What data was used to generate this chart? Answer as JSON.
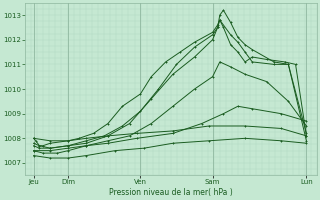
{
  "bg_color": "#c5e8d2",
  "grid_color_minor": "#b0d8c0",
  "grid_color_major": "#90b8a0",
  "line_color": "#1a5c20",
  "ylabel_text": "Pression niveau de la mer( hPa )",
  "ylim": [
    1006.5,
    1013.5
  ],
  "yticks": [
    1007,
    1008,
    1009,
    1010,
    1011,
    1012,
    1013
  ],
  "x_days": [
    "Jeu",
    "Dim",
    "Ven",
    "Sam",
    "Lun"
  ],
  "x_day_positions": [
    0.07,
    0.55,
    1.55,
    2.55,
    3.85
  ],
  "x_vline_positions": [
    0.07,
    0.55,
    1.55,
    2.55,
    3.85
  ],
  "xlim": [
    -0.05,
    4.0
  ],
  "detailed_series": [
    {
      "x": [
        0.07,
        0.1,
        0.15,
        0.2,
        0.3,
        0.55,
        0.7,
        0.9,
        1.1,
        1.3,
        1.55,
        1.7,
        1.9,
        2.1,
        2.3,
        2.55,
        2.62,
        2.65,
        2.7,
        2.8,
        2.9,
        3.0,
        3.1,
        3.3,
        3.55,
        3.7,
        3.85
      ],
      "y": [
        1008.0,
        1007.9,
        1007.7,
        1007.7,
        1007.8,
        1007.9,
        1008.0,
        1008.2,
        1008.6,
        1009.3,
        1009.8,
        1010.5,
        1011.1,
        1011.5,
        1011.9,
        1012.3,
        1012.6,
        1012.8,
        1012.5,
        1011.8,
        1011.5,
        1011.1,
        1011.3,
        1011.2,
        1011.1,
        1011.0,
        1008.1
      ]
    },
    {
      "x": [
        0.07,
        0.15,
        0.3,
        0.55,
        0.8,
        1.05,
        1.3,
        1.55,
        1.8,
        2.05,
        2.3,
        2.55,
        2.62,
        2.65,
        2.7,
        2.8,
        2.9,
        3.0,
        3.1,
        3.4,
        3.6,
        3.85
      ],
      "y": [
        1007.7,
        1007.6,
        1007.6,
        1007.7,
        1007.9,
        1008.1,
        1008.5,
        1009.1,
        1010.0,
        1011.0,
        1011.7,
        1012.2,
        1012.5,
        1013.0,
        1013.2,
        1012.7,
        1012.1,
        1011.8,
        1011.6,
        1011.1,
        1011.0,
        1007.9
      ]
    },
    {
      "x": [
        0.07,
        0.15,
        0.3,
        0.55,
        0.8,
        1.1,
        1.4,
        1.7,
        2.0,
        2.3,
        2.55,
        2.62,
        2.65,
        2.8,
        2.9,
        3.0,
        3.1,
        3.4,
        3.6,
        3.85
      ],
      "y": [
        1007.8,
        1007.7,
        1007.6,
        1007.7,
        1007.8,
        1008.1,
        1008.6,
        1009.6,
        1010.6,
        1011.3,
        1012.0,
        1012.5,
        1012.8,
        1012.2,
        1011.9,
        1011.5,
        1011.1,
        1011.0,
        1011.0,
        1008.2
      ]
    },
    {
      "x": [
        0.07,
        0.2,
        0.4,
        0.55,
        0.8,
        1.1,
        1.4,
        1.7,
        2.0,
        2.3,
        2.55,
        2.65,
        2.8,
        3.0,
        3.3,
        3.6,
        3.85
      ],
      "y": [
        1007.5,
        1007.4,
        1007.4,
        1007.5,
        1007.7,
        1007.9,
        1008.1,
        1008.6,
        1009.3,
        1010.0,
        1010.5,
        1011.1,
        1010.9,
        1010.6,
        1010.3,
        1009.5,
        1008.5
      ]
    },
    {
      "x": [
        0.07,
        0.3,
        0.55,
        0.8,
        1.1,
        1.5,
        2.0,
        2.4,
        2.7,
        2.9,
        3.1,
        3.5,
        3.85
      ],
      "y": [
        1007.5,
        1007.5,
        1007.6,
        1007.7,
        1007.8,
        1008.0,
        1008.2,
        1008.6,
        1009.0,
        1009.3,
        1009.2,
        1009.0,
        1008.7
      ]
    },
    {
      "x": [
        0.07,
        0.3,
        0.55,
        0.8,
        1.1,
        1.5,
        2.0,
        2.5,
        3.0,
        3.5,
        3.85
      ],
      "y": [
        1008.0,
        1007.9,
        1007.9,
        1008.0,
        1008.1,
        1008.2,
        1008.3,
        1008.5,
        1008.5,
        1008.4,
        1008.1
      ]
    },
    {
      "x": [
        0.07,
        0.3,
        0.55,
        0.8,
        1.2,
        1.6,
        2.0,
        2.5,
        3.0,
        3.5,
        3.85
      ],
      "y": [
        1007.3,
        1007.2,
        1007.2,
        1007.3,
        1007.5,
        1007.6,
        1007.8,
        1007.9,
        1008.0,
        1007.9,
        1007.8
      ]
    }
  ]
}
